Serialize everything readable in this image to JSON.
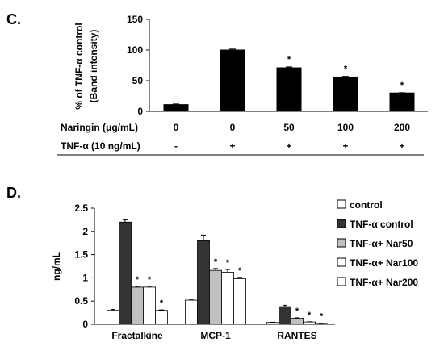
{
  "chart_data": [
    {
      "type": "bar",
      "panel_label": "C.",
      "ylabel": "% of TNF-α control",
      "ylabel2": "(Band intensity)",
      "ylim": [
        0,
        150
      ],
      "yticks": [
        "0",
        "50",
        "100",
        "150"
      ],
      "values": [
        11,
        100,
        71,
        56,
        30
      ],
      "errors": [
        1,
        1.5,
        1.5,
        1,
        0.5
      ],
      "significance": [
        "",
        "",
        "*",
        "*",
        "*"
      ],
      "color": "#000000",
      "condition_rows": [
        {
          "label": "Naringin (μg/mL)",
          "values": [
            "0",
            "0",
            "50",
            "100",
            "200"
          ]
        },
        {
          "label": "TNF-α (10 ng/mL)",
          "values": [
            "-",
            "+",
            "+",
            "+",
            "+"
          ]
        }
      ]
    },
    {
      "type": "bar",
      "panel_label": "D.",
      "ylabel": "ng/mL",
      "ylim": [
        0,
        2.5
      ],
      "yticks": [
        "0",
        "0.5",
        "1",
        "1.5",
        "2",
        "2.5"
      ],
      "categories": [
        "Fractalkine",
        "MCP-1",
        "RANTES"
      ],
      "legend_position": "top-right",
      "series": [
        {
          "name": "control",
          "color": "#ffffff",
          "values": [
            0.3,
            0.52,
            0.04
          ],
          "errors": [
            0.02,
            0.02,
            0.005
          ],
          "significance": [
            "",
            "",
            ""
          ]
        },
        {
          "name": "TNF-α control",
          "color": "#333333",
          "values": [
            2.2,
            1.8,
            0.38
          ],
          "errors": [
            0.05,
            0.12,
            0.03
          ],
          "significance": [
            "",
            "",
            ""
          ]
        },
        {
          "name": "TNF-α+ Nar50",
          "color": "#c0c0c0",
          "values": [
            0.8,
            1.16,
            0.13
          ],
          "errors": [
            0.02,
            0.04,
            0.01
          ],
          "significance": [
            "*",
            "*",
            "*"
          ]
        },
        {
          "name": "TNF-α+ Nar100",
          "color": "#ffffff",
          "values": [
            0.8,
            1.12,
            0.05
          ],
          "errors": [
            0.02,
            0.06,
            0.005
          ],
          "significance": [
            "*",
            "*",
            "*"
          ]
        },
        {
          "name": "TNF-α+ Nar200",
          "color": "#ffffff",
          "values": [
            0.3,
            0.98,
            0.02
          ],
          "errors": [
            0.01,
            0.03,
            0.003
          ],
          "significance": [
            "*",
            "*",
            "*"
          ]
        }
      ]
    }
  ]
}
